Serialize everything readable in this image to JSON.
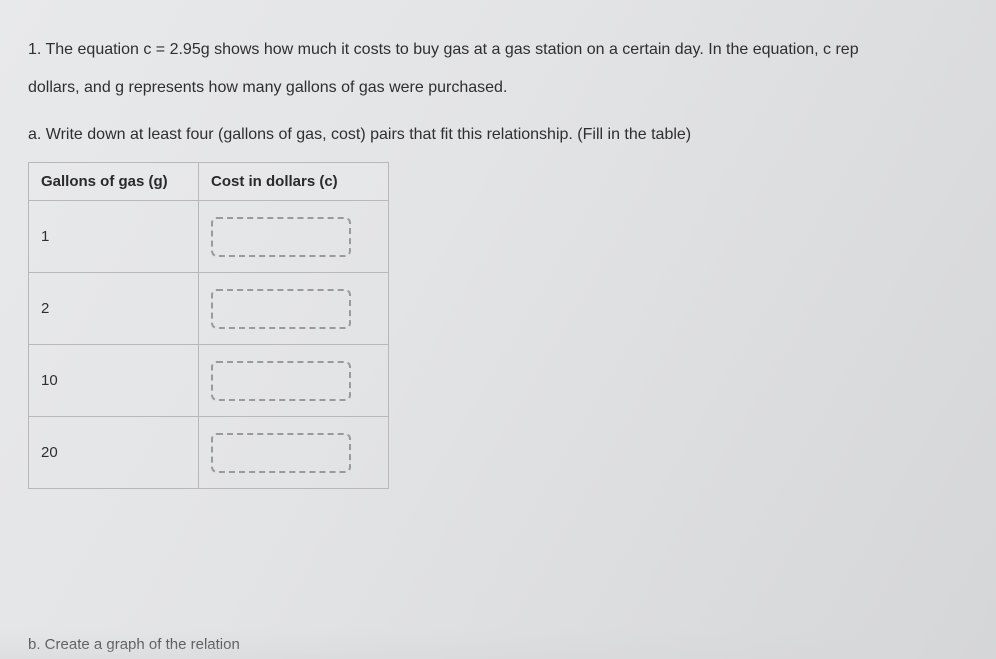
{
  "question": {
    "line1": "1. The equation c = 2.95g shows how much it costs to buy gas at a gas station on a certain day. In the equation, c rep",
    "line2": "dollars, and g represents how many gallons of gas were purchased.",
    "partA": "a. Write down at least four (gallons of gas, cost) pairs that fit this relationship. (Fill in the table)",
    "partB": "b. Create a graph of the relation"
  },
  "table": {
    "headers": {
      "g": "Gallons of gas (g)",
      "c": "Cost in dollars (c)"
    },
    "rows": [
      {
        "g": "1",
        "c": ""
      },
      {
        "g": "2",
        "c": ""
      },
      {
        "g": "10",
        "c": ""
      },
      {
        "g": "20",
        "c": ""
      }
    ],
    "border_color": "#b8b8b8",
    "dash_color": "#9a9a9a"
  },
  "styling": {
    "background_gradient": [
      "#e8e9eb",
      "#d5d6d8"
    ],
    "text_color": "#2f2f2f",
    "font_family": "Arial",
    "body_fontsize": 16,
    "header_fontsize": 15
  }
}
